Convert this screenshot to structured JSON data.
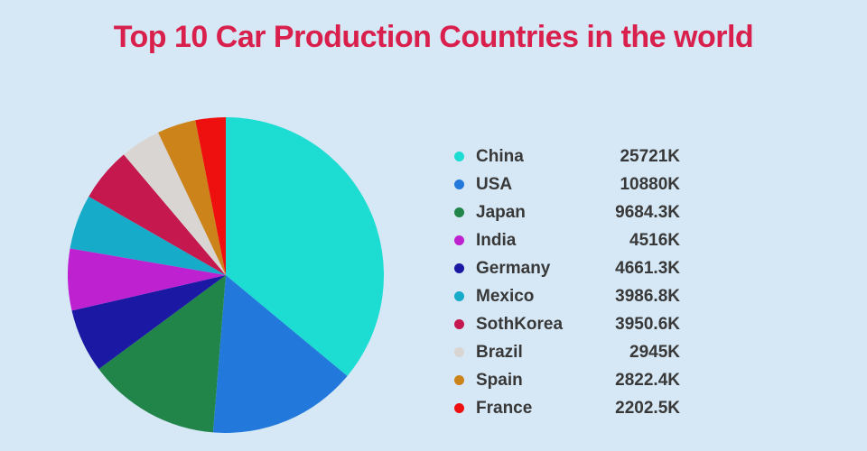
{
  "page": {
    "background_color": "#d6e8f5"
  },
  "title": {
    "text": "Top 10 Car Production Countries in the world",
    "color": "#d91f4c"
  },
  "legend": {
    "position": "right",
    "text_color": "#383838"
  },
  "chart_data": {
    "type": "pie",
    "title": "Top 10 Car Production Countries in the world",
    "value_suffix": "K",
    "start_angle_deg": 0,
    "direction": "clockwise",
    "slices_drawn_sorted_desc": true,
    "legend_position": "right",
    "categories": [
      "China",
      "USA",
      "Japan",
      "India",
      "Germany",
      "Mexico",
      "SothKorea",
      "Brazil",
      "Spain",
      "France"
    ],
    "values": [
      25721,
      10880,
      9684.3,
      4516,
      4661.3,
      3986.8,
      3950.6,
      2945,
      2822.4,
      2202.5
    ],
    "value_labels": [
      "25721K",
      "10880K",
      "9684.3K",
      "4516K",
      "4661.3K",
      "3986.8K",
      "3950.6K",
      "2945K",
      "2822.4K",
      "2202.5K"
    ],
    "colors": [
      "#1ddcd2",
      "#2279db",
      "#218549",
      "#be21d0",
      "#1b18a4",
      "#16abc8",
      "#c5184e",
      "#d9d5d3",
      "#cc8319",
      "#ee100f"
    ]
  }
}
